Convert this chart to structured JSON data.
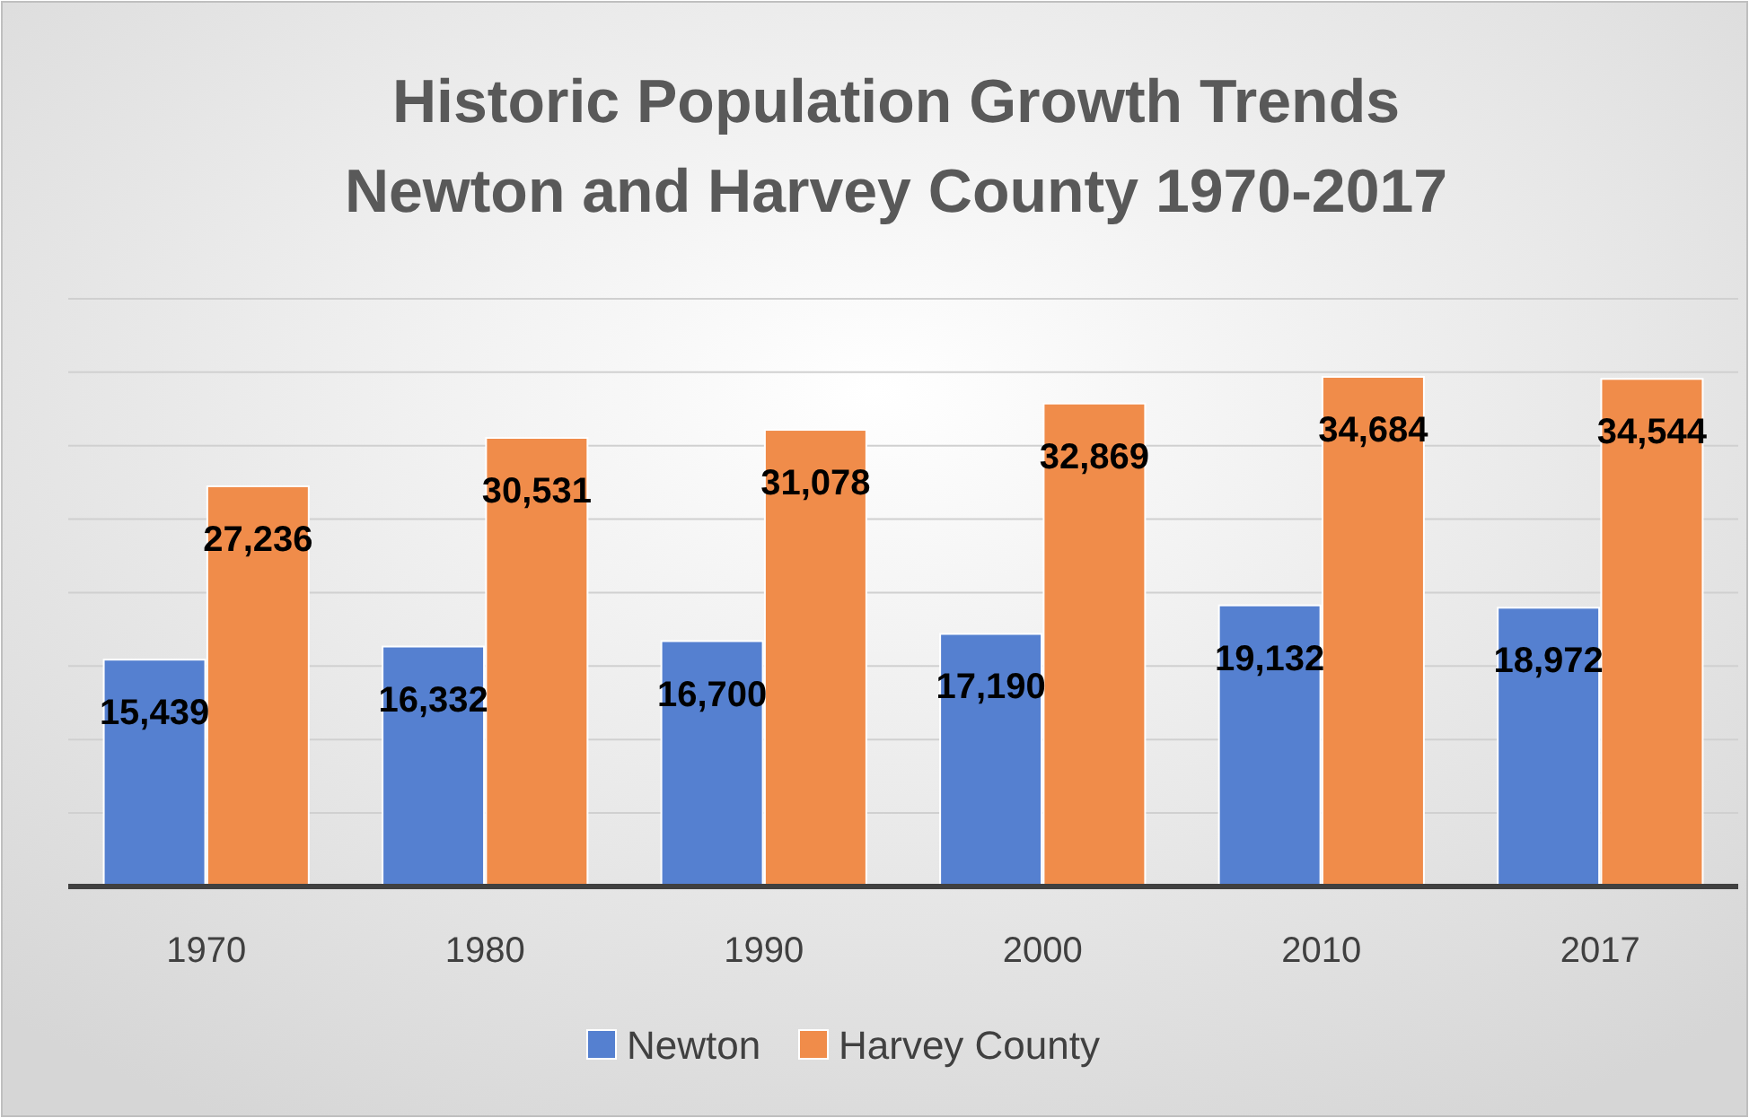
{
  "chart_data": {
    "type": "bar",
    "title": "Historic Population Growth Trends\nNewton and Harvey County 1970-2017",
    "categories": [
      "1970",
      "1980",
      "1990",
      "2000",
      "2010",
      "2017"
    ],
    "series": [
      {
        "name": "Newton",
        "color": "#5580d0",
        "values": [
          15439,
          16332,
          16700,
          17190,
          19132,
          18972
        ],
        "value_labels": [
          "15,439",
          "16,332",
          "16,700",
          "17,190",
          "19,132",
          "18,972"
        ]
      },
      {
        "name": "Harvey County",
        "color": "#f08c4a",
        "values": [
          27236,
          30531,
          31078,
          32869,
          34684,
          34544
        ],
        "value_labels": [
          "27,236",
          "30,531",
          "31,078",
          "32,869",
          "34,684",
          "34,544"
        ]
      }
    ],
    "grid": "y",
    "legend": "bottom",
    "tick_labels": "x"
  }
}
